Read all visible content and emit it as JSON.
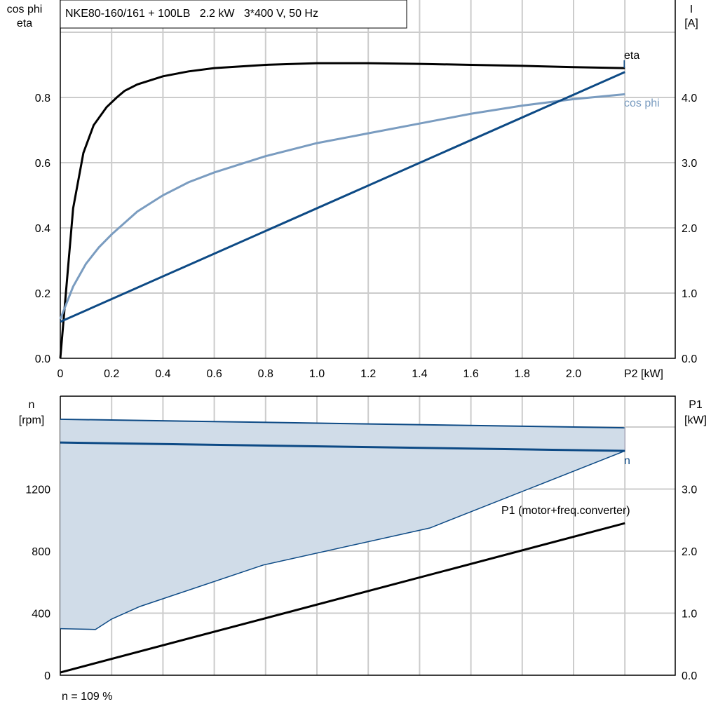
{
  "chart_data": [
    {
      "type": "line",
      "title": "NKE80-160/161 + 100LB   2.2 kW   3*400 V, 50 Hz",
      "xlabel": "P2 [kW]",
      "ylabel": "cos phi\neta",
      "y2label": "I\n[A]",
      "xlim": [
        0,
        2.4
      ],
      "ylim": [
        0,
        1.0
      ],
      "y2lim": [
        0,
        5.0
      ],
      "xticks": [
        "0",
        "0.2",
        "0.4",
        "0.6",
        "0.8",
        "1.0",
        "1.2",
        "1.4",
        "1.6",
        "1.8",
        "2.0"
      ],
      "yticks": [
        "0.0",
        "0.2",
        "0.4",
        "0.6",
        "0.8"
      ],
      "y2ticks": [
        "0.0",
        "1.0",
        "2.0",
        "3.0",
        "4.0"
      ],
      "grid": true,
      "series": [
        {
          "name": "eta",
          "axis": "left",
          "color": "#000000",
          "x": [
            0,
            0.05,
            0.09,
            0.13,
            0.18,
            0.22,
            0.25,
            0.3,
            0.4,
            0.5,
            0.6,
            0.8,
            1.0,
            1.2,
            1.4,
            1.6,
            1.8,
            2.0,
            2.2
          ],
          "y": [
            0,
            0.46,
            0.63,
            0.715,
            0.77,
            0.8,
            0.82,
            0.84,
            0.865,
            0.88,
            0.89,
            0.9,
            0.905,
            0.905,
            0.903,
            0.9,
            0.897,
            0.893,
            0.89
          ]
        },
        {
          "name": "cos phi",
          "axis": "left",
          "color": "#7a9cc0",
          "x": [
            0,
            0.05,
            0.1,
            0.15,
            0.2,
            0.3,
            0.4,
            0.5,
            0.6,
            0.8,
            1.0,
            1.2,
            1.4,
            1.6,
            1.8,
            2.0,
            2.2
          ],
          "y": [
            0.12,
            0.22,
            0.29,
            0.34,
            0.38,
            0.45,
            0.5,
            0.54,
            0.57,
            0.62,
            0.66,
            0.69,
            0.72,
            0.75,
            0.775,
            0.795,
            0.81
          ]
        },
        {
          "name": "I",
          "axis": "right",
          "color": "#0d4a85",
          "x": [
            0,
            2.2
          ],
          "y": [
            0.56,
            4.39
          ]
        }
      ]
    },
    {
      "type": "area",
      "xlim": [
        0,
        2.4
      ],
      "ylim": [
        0,
        2000
      ],
      "y2lim": [
        0,
        5.0
      ],
      "ylabel": "n\n[rpm]",
      "y2label": "P1\n[kW]",
      "yticks": [
        "0",
        "400",
        "800",
        "1200"
      ],
      "y2ticks": [
        "0.0",
        "1.0",
        "2.0",
        "3.0"
      ],
      "grid": true,
      "band": {
        "color": "#d0dce8",
        "upper": {
          "x": [
            0,
            2.2
          ],
          "y": [
            1650,
            1595
          ]
        },
        "lower": {
          "x": [
            0,
            0.137,
            0.2,
            0.31,
            0.79,
            1.44,
            2.2
          ],
          "y": [
            300,
            295,
            362,
            443,
            710,
            949,
            1446
          ]
        }
      },
      "series": [
        {
          "name": "n",
          "axis": "left",
          "color": "#0d4a85",
          "x": [
            0,
            2.2
          ],
          "y": [
            1500,
            1446
          ]
        },
        {
          "name": "P1 (motor+freq.converter)",
          "axis": "right",
          "color": "#000000",
          "x": [
            0,
            2.2
          ],
          "y": [
            0.045,
            2.45
          ]
        }
      ],
      "note": "n = 109 %"
    }
  ]
}
